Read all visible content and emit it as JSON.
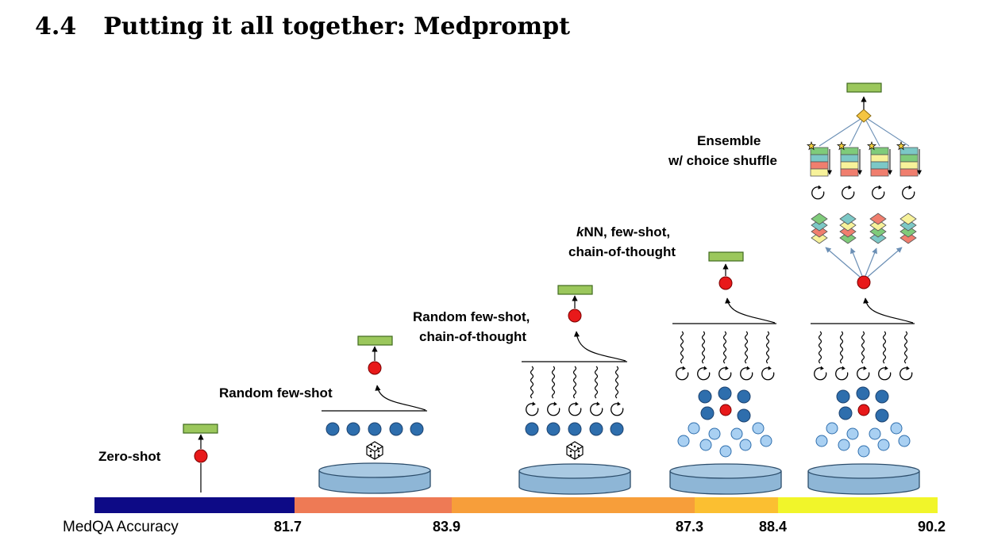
{
  "section": {
    "number": "4.4",
    "title": "Putting it all together: Medprompt"
  },
  "stages": [
    {
      "lines": [
        "Zero-shot"
      ]
    },
    {
      "lines": [
        "Random few-shot"
      ]
    },
    {
      "lines": [
        "Random few-shot,",
        "chain-of-thought"
      ]
    },
    {
      "lines": [
        "kNN, few-shot,",
        "chain-of-thought"
      ]
    },
    {
      "lines": [
        "Ensemble",
        "w/ choice shuffle"
      ]
    }
  ],
  "axis": {
    "label": "MedQA Accuracy",
    "ticks": [
      "81.7",
      "83.9",
      "87.3",
      "88.4",
      "90.2"
    ]
  },
  "colors": {
    "output_bar": "#9BC75C",
    "answer_node": "#E8191A",
    "example_dark": "#2E6EAD",
    "example_light": "#A9D0F2",
    "database": "#8EB6D6",
    "diamond": "#F5C542",
    "band_1": "#0D0A86",
    "band_2": "#EE7A55",
    "band_3": "#F79E3A",
    "band_4": "#FBBF31",
    "band_5": "#F1F52A"
  },
  "icons": [
    "dice-icon",
    "database-icon",
    "refresh-icon",
    "wavy-reasoning-icon",
    "star-icon"
  ]
}
